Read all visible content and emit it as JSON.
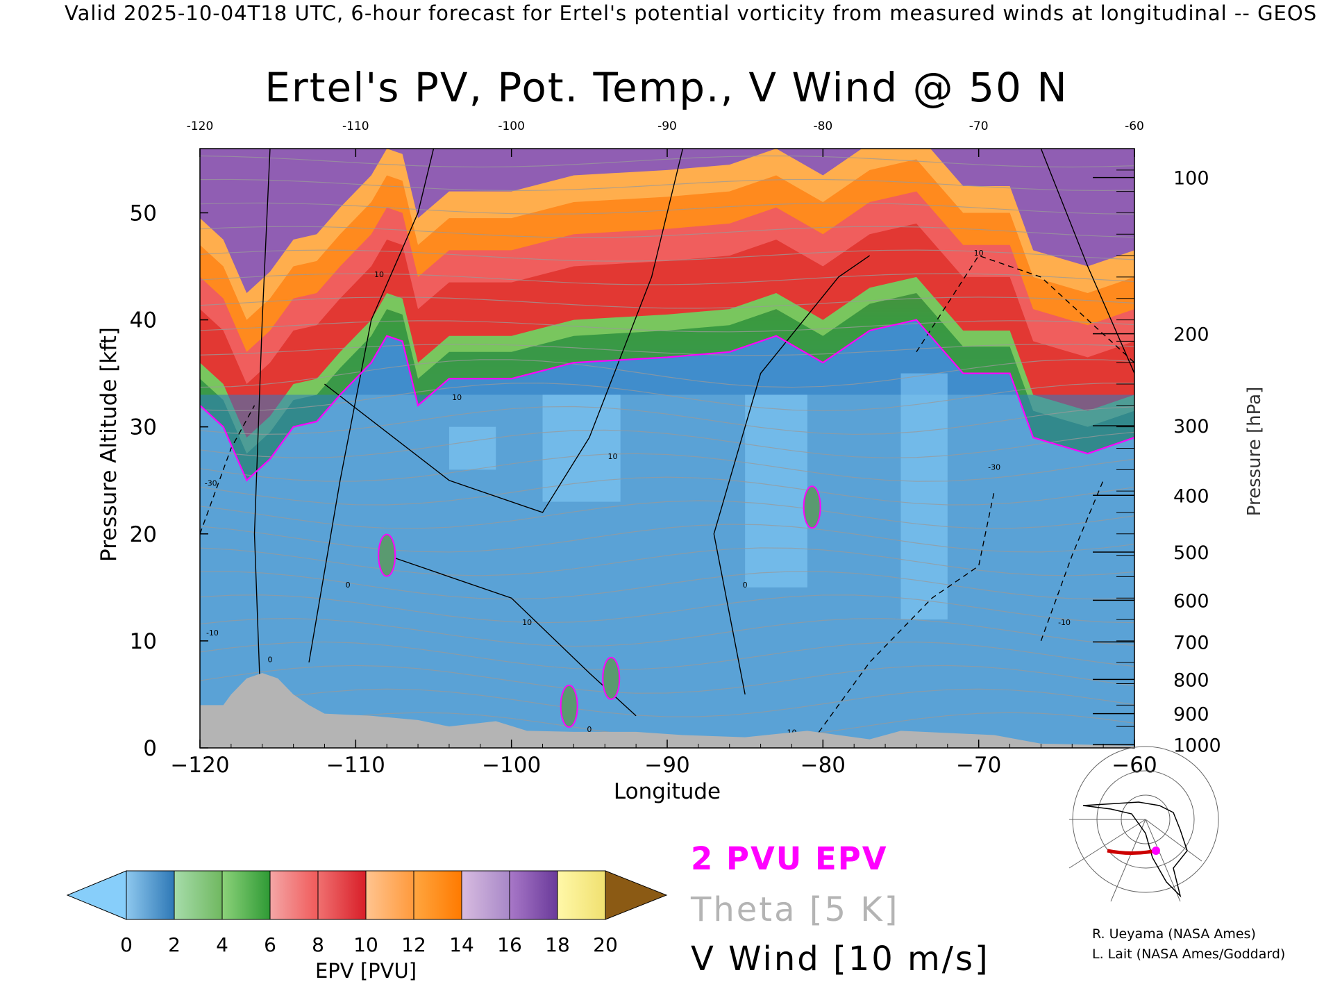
{
  "header": "Valid 2025-10-04T18 UTC, 6-hour forecast for Ertel's potential vorticity from measured winds at longitudinal -- GEOS",
  "title": "Ertel's PV, Pot. Temp., V Wind @ 50 N",
  "chart_data": {
    "type": "heatmap",
    "title": "Ertel's PV, Pot. Temp., V Wind @ 50 N",
    "xlabel": "Longitude",
    "ylabel_left": "Pressure Altitude [kft]",
    "ylabel_right": "Pressure [hPa]",
    "xlim": [
      -120,
      -60
    ],
    "ylim": [
      0,
      56
    ],
    "x_ticks": [
      "-120",
      "-110",
      "-100",
      "-90",
      "-80",
      "-70",
      "-60"
    ],
    "x_ticks_bottom": [
      "−120",
      "−110",
      "−100",
      "−90",
      "−80",
      "−70",
      "−60"
    ],
    "y_ticks_left": [
      "0",
      "10",
      "20",
      "30",
      "40",
      "50"
    ],
    "y_ticks_right": [
      {
        "label": "1000",
        "kft": 0.3
      },
      {
        "label": "900",
        "kft": 3.2
      },
      {
        "label": "800",
        "kft": 6.4
      },
      {
        "label": "700",
        "kft": 9.9
      },
      {
        "label": "600",
        "kft": 13.8
      },
      {
        "label": "500",
        "kft": 18.3
      },
      {
        "label": "400",
        "kft": 23.6
      },
      {
        "label": "300",
        "kft": 30.1
      },
      {
        "label": "200",
        "kft": 38.7
      },
      {
        "label": "100",
        "kft": 53.3
      }
    ],
    "tropopause_2pvu_kft": [
      {
        "lon": -120,
        "kft": 32
      },
      {
        "lon": -118.5,
        "kft": 30
      },
      {
        "lon": -117,
        "kft": 25
      },
      {
        "lon": -115.5,
        "kft": 27
      },
      {
        "lon": -114,
        "kft": 30
      },
      {
        "lon": -112.5,
        "kft": 30.5
      },
      {
        "lon": -111,
        "kft": 33
      },
      {
        "lon": -109,
        "kft": 36
      },
      {
        "lon": -108,
        "kft": 38.5
      },
      {
        "lon": -107,
        "kft": 38
      },
      {
        "lon": -106,
        "kft": 32
      },
      {
        "lon": -104,
        "kft": 34.5
      },
      {
        "lon": -100,
        "kft": 34.5
      },
      {
        "lon": -96,
        "kft": 36
      },
      {
        "lon": -90,
        "kft": 36.5
      },
      {
        "lon": -86,
        "kft": 37
      },
      {
        "lon": -83,
        "kft": 38.5
      },
      {
        "lon": -80,
        "kft": 36
      },
      {
        "lon": -77,
        "kft": 39
      },
      {
        "lon": -74,
        "kft": 40
      },
      {
        "lon": -71,
        "kft": 35
      },
      {
        "lon": -68,
        "kft": 35
      },
      {
        "lon": -66.5,
        "kft": 29
      },
      {
        "lon": -63,
        "kft": 27.5
      },
      {
        "lon": -60,
        "kft": 29
      }
    ],
    "pv_blobs_2pvu": [
      {
        "lon": -108,
        "kft": 18,
        "label": "2 PVU"
      },
      {
        "lon": -80.7,
        "kft": 22.5,
        "label": "2 PVU"
      },
      {
        "lon": -93.6,
        "kft": 6.5,
        "label": "2 PVU"
      },
      {
        "lon": -96.3,
        "kft": 3.9,
        "label": "2 PVU"
      }
    ],
    "v_wind_contours": [
      {
        "value": 0,
        "lon": -115.5,
        "kft": 8
      },
      {
        "value": 0,
        "lon": -110.5,
        "kft": 15
      },
      {
        "value": 10,
        "lon": -108.5,
        "kft": 44
      },
      {
        "value": 10,
        "lon": -103.5,
        "kft": 32.5
      },
      {
        "value": 10,
        "lon": -99,
        "kft": 11.5
      },
      {
        "value": 10,
        "lon": -93.5,
        "kft": 27
      },
      {
        "value": 0,
        "lon": -95,
        "kft": 1.5
      },
      {
        "value": 0,
        "lon": -85,
        "kft": 15
      },
      {
        "value": 10,
        "lon": -82,
        "kft": 1.2
      },
      {
        "value": 10,
        "lon": -70,
        "kft": 46
      },
      {
        "value": -30,
        "lon": -69,
        "kft": 26
      },
      {
        "value": -10,
        "lon": -64.5,
        "kft": 11.5
      },
      {
        "value": -10,
        "lon": -119.2,
        "kft": 10.5
      },
      {
        "value": -30,
        "lon": -119.3,
        "kft": 24.5
      }
    ],
    "terrain_kft": [
      {
        "lon": -120,
        "kft": 4
      },
      {
        "lon": -118.5,
        "kft": 4
      },
      {
        "lon": -118,
        "kft": 5
      },
      {
        "lon": -117,
        "kft": 6.5
      },
      {
        "lon": -116,
        "kft": 7
      },
      {
        "lon": -115,
        "kft": 6.5
      },
      {
        "lon": -114,
        "kft": 5
      },
      {
        "lon": -113,
        "kft": 4
      },
      {
        "lon": -112,
        "kft": 3.2
      },
      {
        "lon": -109,
        "kft": 3
      },
      {
        "lon": -106,
        "kft": 2.6
      },
      {
        "lon": -104,
        "kft": 2
      },
      {
        "lon": -101,
        "kft": 2.5
      },
      {
        "lon": -99,
        "kft": 1.6
      },
      {
        "lon": -96,
        "kft": 1.5
      },
      {
        "lon": -92,
        "kft": 1.5
      },
      {
        "lon": -89,
        "kft": 1.2
      },
      {
        "lon": -85,
        "kft": 1
      },
      {
        "lon": -81,
        "kft": 1.6
      },
      {
        "lon": -77,
        "kft": 0.8
      },
      {
        "lon": -75,
        "kft": 1.6
      },
      {
        "lon": -69,
        "kft": 1.2
      },
      {
        "lon": -66,
        "kft": 0.4
      },
      {
        "lon": -60,
        "kft": 0.2
      }
    ]
  },
  "colorbar": {
    "label": "EPV [PVU]",
    "ticks": [
      "0",
      "2",
      "4",
      "6",
      "8",
      "10",
      "12",
      "14",
      "16",
      "18",
      "20"
    ],
    "under_color": "#87cefa",
    "over_color": "#8b5a14",
    "bins": [
      [
        "#8ec8ee",
        "#2e78b6"
      ],
      [
        "#a6dcaa",
        "#70b860"
      ],
      [
        "#8cd27a",
        "#2f9a35"
      ],
      [
        "#f4a6a6",
        "#f05a5a"
      ],
      [
        "#f07070",
        "#d81e28"
      ],
      [
        "#ffc490",
        "#ff9a3c"
      ],
      [
        "#ffa640",
        "#ff7a00"
      ],
      [
        "#d8bce0",
        "#a888c8"
      ],
      [
        "#a878c8",
        "#6a3a9a"
      ],
      [
        "#fff8a8",
        "#f0e070"
      ],
      [
        "#f0dc90",
        "#c89660"
      ]
    ]
  },
  "legend": {
    "pv": "2 PVU EPV",
    "theta": "Theta [5 K]",
    "vwind": "V Wind [10 m/s]"
  },
  "inset_map": {
    "description_icon": "globe-map-icon",
    "track_color": "#cc0000",
    "marker_color": "#ff00ff"
  },
  "credits": {
    "line1": "R. Ueyama (NASA Ames)",
    "line2": "L. Lait (NASA Ames/Goddard)"
  },
  "colors": {
    "pv2_contour": "#ff00ff",
    "theta_contour": "#9a9a9a",
    "terrain": "#b4b4b4"
  }
}
